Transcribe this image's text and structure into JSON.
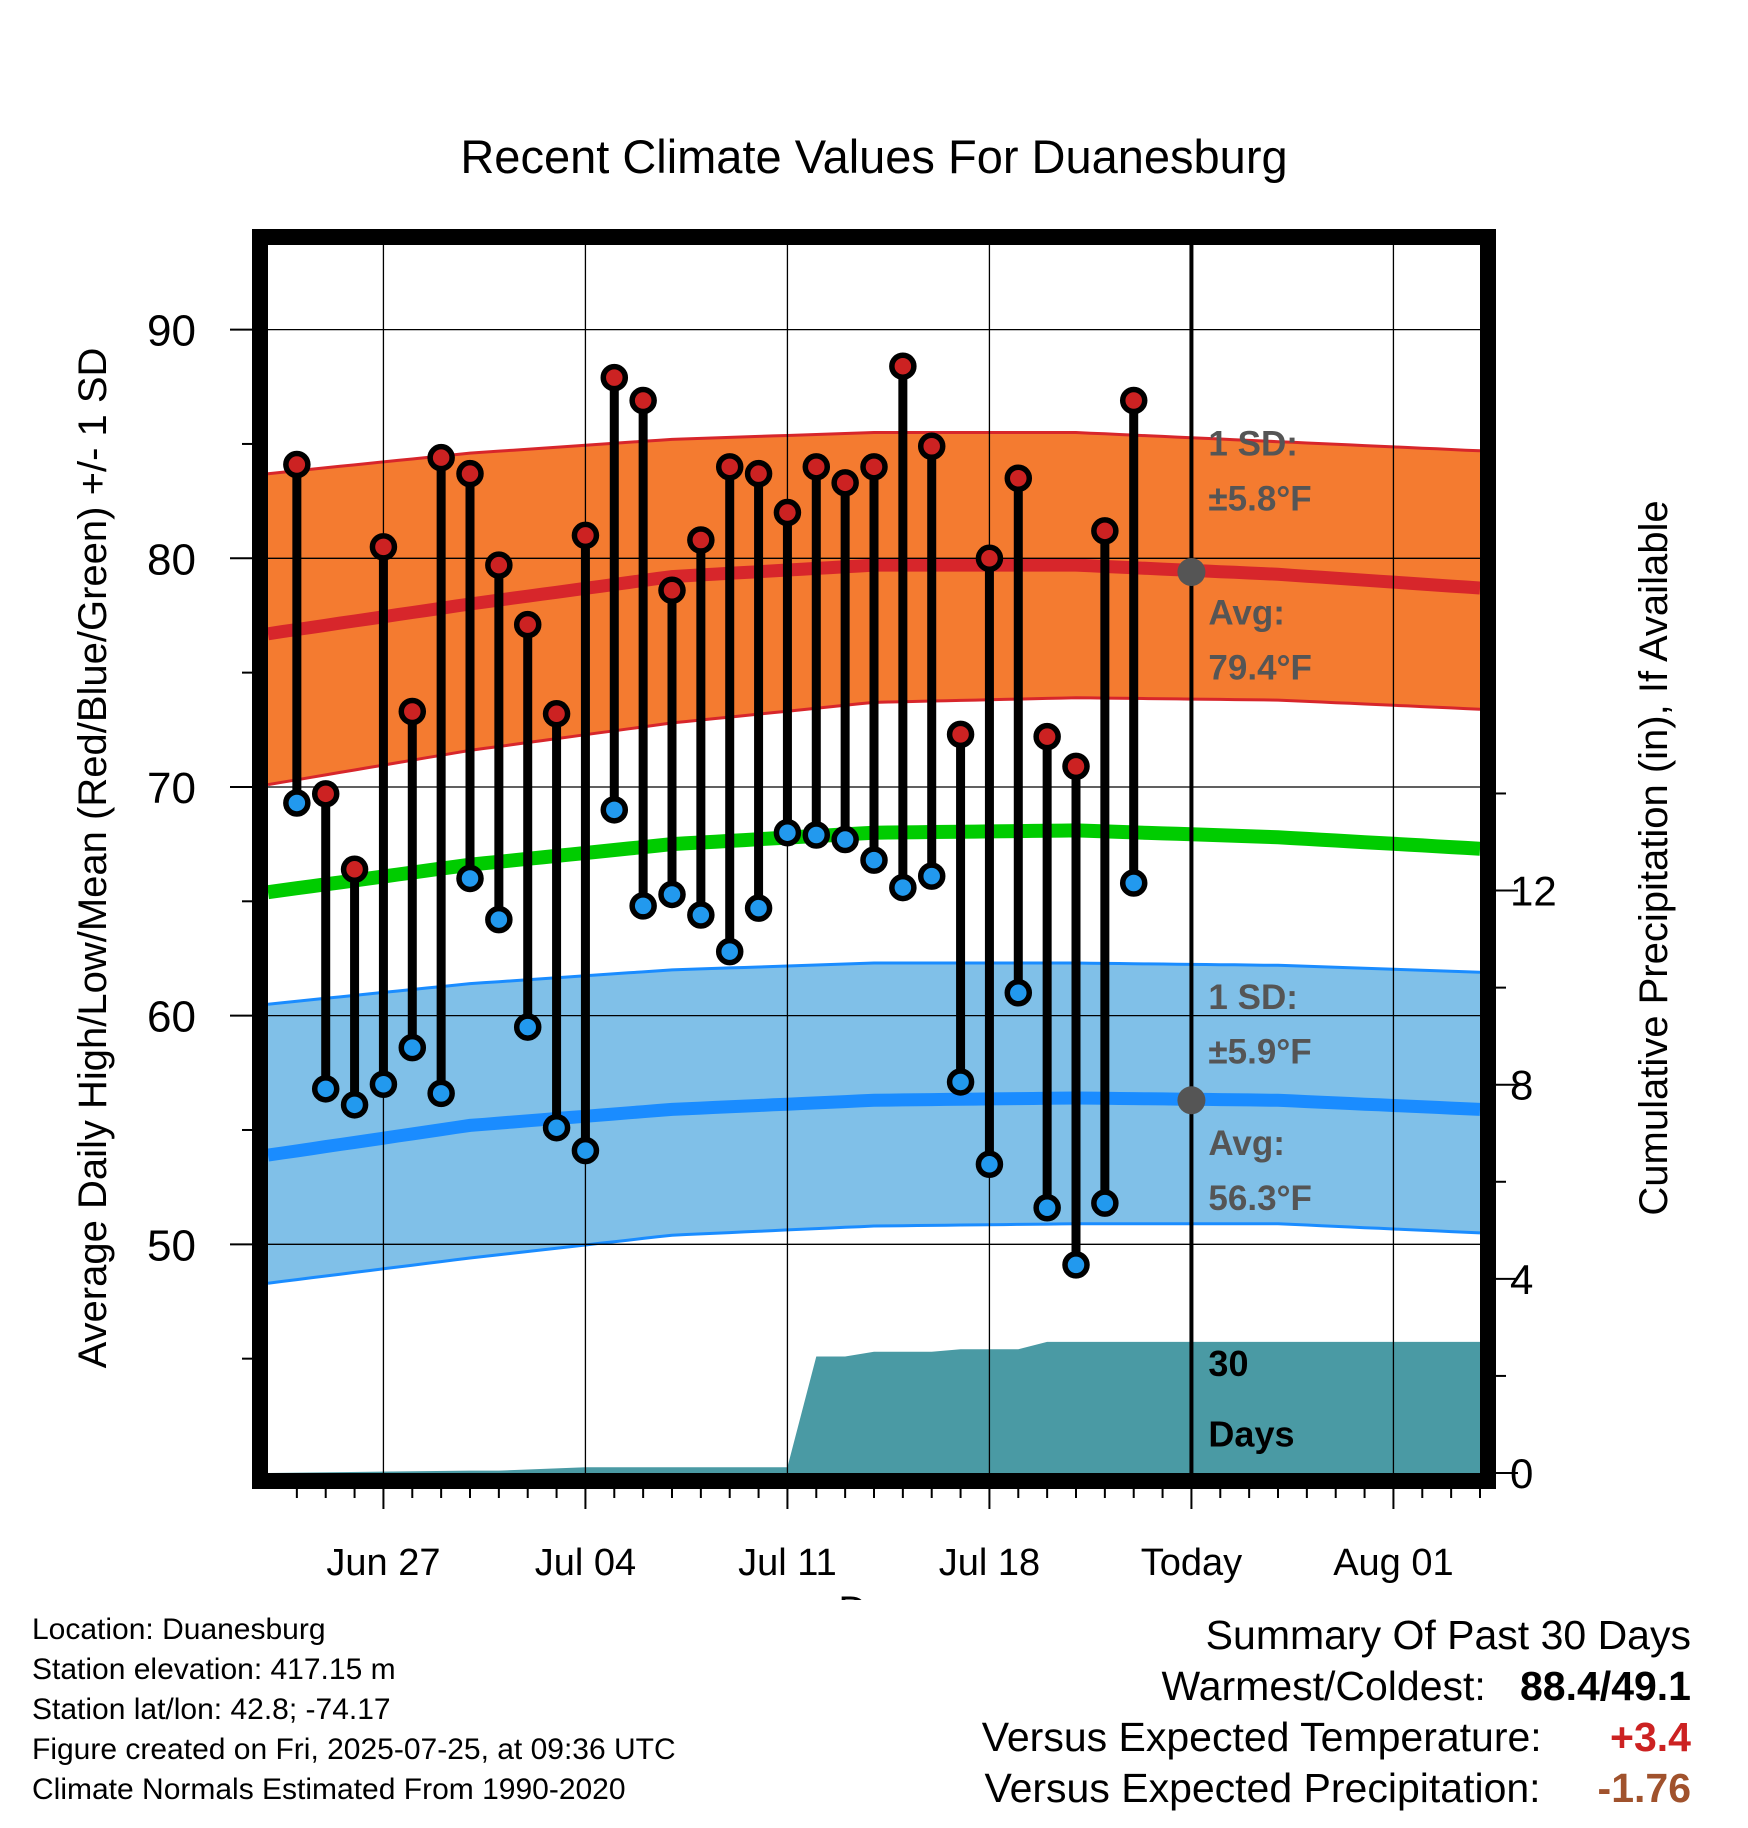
{
  "chart_data": {
    "type": "line",
    "title": "Recent Climate Values For Duanesburg",
    "xlabel": "Day",
    "ylabel": "Average Daily High/Low/Mean (Red/Blue/Green) +/- 1 SD",
    "y2label": "Cumulative Precipitation (in), If Available",
    "ylim": [
      40,
      93.7
    ],
    "y_ticks": [
      50,
      60,
      70,
      80,
      90
    ],
    "y2lim": [
      0,
      25.3
    ],
    "y2_ticks": [
      0,
      4,
      8,
      12
    ],
    "xlim": [
      "2025-06-23",
      "2025-08-04"
    ],
    "x_ticks": [
      {
        "date": "2025-06-27",
        "label": "Jun 27"
      },
      {
        "date": "2025-07-04",
        "label": "Jul 04"
      },
      {
        "date": "2025-07-11",
        "label": "Jul 11"
      },
      {
        "date": "2025-07-18",
        "label": "Jul 18"
      },
      {
        "date": "2025-07-25",
        "label": "Today"
      },
      {
        "date": "2025-08-01",
        "label": "Aug 01"
      }
    ],
    "grid": true,
    "today": "2025-07-25",
    "colors": {
      "high_band": "#f47b30",
      "high_line": "#d7262b",
      "low_band": "#80c0e8",
      "low_line": "#1a8cff",
      "mean_line": "#00cc00",
      "precip": "#4a9aa4",
      "high_dot": "#cc2222",
      "low_dot": "#2299ee",
      "annotation": "#555555",
      "warm": "#cc2222",
      "dry": "#a0522d"
    },
    "normals": {
      "dates": [
        "2025-06-23",
        "2025-06-30",
        "2025-07-07",
        "2025-07-14",
        "2025-07-21",
        "2025-07-28",
        "2025-08-04"
      ],
      "high_avg": [
        76.7,
        78.0,
        79.2,
        79.7,
        79.7,
        79.3,
        78.7
      ],
      "high_upper": [
        83.7,
        84.6,
        85.2,
        85.5,
        85.5,
        85.1,
        84.7
      ],
      "high_lower": [
        70.1,
        71.6,
        72.8,
        73.7,
        73.9,
        73.8,
        73.4
      ],
      "low_avg": [
        53.9,
        55.2,
        55.9,
        56.3,
        56.4,
        56.3,
        55.9
      ],
      "low_upper": [
        60.5,
        61.4,
        62.0,
        62.3,
        62.3,
        62.2,
        61.9
      ],
      "low_lower": [
        48.3,
        49.4,
        50.4,
        50.8,
        50.9,
        50.9,
        50.5
      ],
      "mean": [
        65.4,
        66.6,
        67.5,
        68.0,
        68.1,
        67.8,
        67.3
      ]
    },
    "series": [
      {
        "name": "High",
        "dates": [
          "2025-06-24",
          "2025-06-25",
          "2025-06-26",
          "2025-06-27",
          "2025-06-28",
          "2025-06-29",
          "2025-06-30",
          "2025-07-01",
          "2025-07-02",
          "2025-07-03",
          "2025-07-04",
          "2025-07-05",
          "2025-07-06",
          "2025-07-07",
          "2025-07-08",
          "2025-07-09",
          "2025-07-10",
          "2025-07-11",
          "2025-07-12",
          "2025-07-13",
          "2025-07-14",
          "2025-07-15",
          "2025-07-16",
          "2025-07-17",
          "2025-07-18",
          "2025-07-19",
          "2025-07-20",
          "2025-07-21",
          "2025-07-22",
          "2025-07-23",
          "2025-07-24"
        ],
        "values": [
          84.1,
          69.7,
          66.4,
          80.5,
          73.3,
          84.4,
          83.7,
          79.7,
          77.1,
          73.2,
          81.0,
          87.9,
          86.9,
          78.6,
          80.8,
          84.0,
          83.7,
          82.0,
          84.0,
          83.3,
          84.0,
          88.4,
          84.9,
          72.3,
          80.0,
          83.5,
          72.2,
          70.9,
          81.2,
          86.9,
          null
        ]
      },
      {
        "name": "Low",
        "dates": [
          "2025-06-24",
          "2025-06-25",
          "2025-06-26",
          "2025-06-27",
          "2025-06-28",
          "2025-06-29",
          "2025-06-30",
          "2025-07-01",
          "2025-07-02",
          "2025-07-03",
          "2025-07-04",
          "2025-07-05",
          "2025-07-06",
          "2025-07-07",
          "2025-07-08",
          "2025-07-09",
          "2025-07-10",
          "2025-07-11",
          "2025-07-12",
          "2025-07-13",
          "2025-07-14",
          "2025-07-15",
          "2025-07-16",
          "2025-07-17",
          "2025-07-18",
          "2025-07-19",
          "2025-07-20",
          "2025-07-21",
          "2025-07-22",
          "2025-07-23",
          "2025-07-24"
        ],
        "values": [
          69.3,
          56.8,
          56.1,
          57.0,
          58.6,
          56.6,
          66.0,
          64.2,
          59.5,
          55.1,
          54.1,
          69.0,
          64.8,
          65.3,
          64.4,
          62.8,
          64.7,
          68.0,
          67.9,
          67.7,
          66.8,
          65.6,
          66.1,
          57.1,
          53.5,
          61.0,
          51.6,
          49.1,
          51.8,
          65.8,
          null
        ]
      },
      {
        "name": "Cumulative Precipitation",
        "dates": [
          "2025-06-23",
          "2025-06-30",
          "2025-07-01",
          "2025-07-04",
          "2025-07-11",
          "2025-07-12",
          "2025-07-13",
          "2025-07-14",
          "2025-07-15",
          "2025-07-16",
          "2025-07-17",
          "2025-07-18",
          "2025-07-19",
          "2025-07-20",
          "2025-07-25",
          "2025-08-04"
        ],
        "values": [
          0.0,
          0.05,
          0.05,
          0.12,
          0.12,
          2.4,
          2.4,
          2.5,
          2.5,
          2.5,
          2.55,
          2.55,
          2.55,
          2.7,
          2.7,
          2.7
        ]
      }
    ],
    "annotations": {
      "high_sd_label": "1 SD:",
      "high_sd_value": "±5.8°F",
      "high_avg_label": "Avg:",
      "high_avg_value": "79.4°F",
      "high_avg": 79.4,
      "low_sd_label": "1 SD:",
      "low_sd_value": "±5.9°F",
      "low_avg_label": "Avg:",
      "low_avg_value": "56.3°F",
      "low_avg": 56.3,
      "days_number": "30",
      "days_word": "Days"
    }
  },
  "location": {
    "name_line": "Location: Duanesburg",
    "elevation_line": "Station elevation: 417.15 m",
    "latlon_line": "Station lat/lon: 42.8; -74.17",
    "created_line": "Figure created on Fri, 2025-07-25, at 09:36 UTC",
    "normals_line": "Climate Normals Estimated From 1990-2020"
  },
  "summary": {
    "title": "Summary Of Past 30 Days",
    "warmest_coldest_label": "Warmest/Coldest:",
    "warmest_coldest_value": "88.4/49.1",
    "temp_label": "Versus Expected Temperature:",
    "temp_value": "+3.4",
    "precip_label": "Versus Expected Precipitation:",
    "precip_value": "-1.76"
  }
}
